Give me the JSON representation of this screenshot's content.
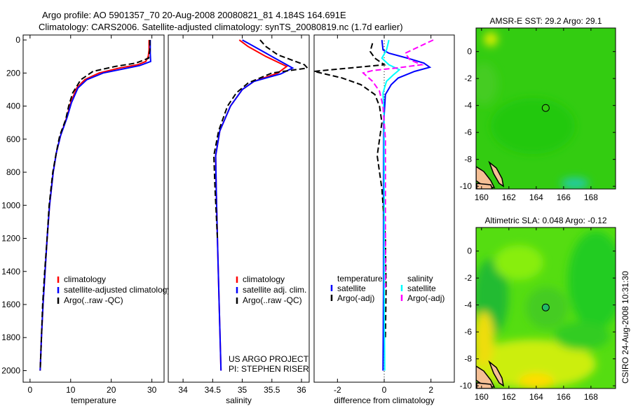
{
  "title_line1": "Argo profile: AO 5901357_70 20-Aug-2008 20080821_81 4.184S 164.691E",
  "title_line2": "Climatology: CARS2006. Satellite-adjusted climatology: synTS_20080819.nc (1.7d earlier)",
  "credit": "CSIRO 24-Aug-2008 10:31:30",
  "project_lines": [
    "US ARGO PROJECT",
    "PI: STEPHEN RISER"
  ],
  "colors": {
    "climatology": "#ff0000",
    "satellite": "#0000ff",
    "argo": "#000000",
    "sal_satellite": "#00ffff",
    "sal_argo": "#ff00ff"
  },
  "chart_data": [
    {
      "type": "line",
      "xlabel": "temperature",
      "ylabel": "",
      "xlim": [
        -1.7,
        33
      ],
      "ylim": [
        2070,
        -30
      ],
      "xticks": [
        0,
        10,
        20,
        30
      ],
      "yticks": [
        0,
        200,
        400,
        600,
        800,
        1000,
        1200,
        1400,
        1600,
        1800,
        2000
      ],
      "legend": [
        "climatology",
        "satellite-adjusted climatology",
        "Argo(..raw -QC)"
      ],
      "series": [
        {
          "name": "climatology",
          "color": "#ff0000",
          "dash": false,
          "points": [
            [
              29.3,
              0
            ],
            [
              29.3,
              60
            ],
            [
              29.1,
              100
            ],
            [
              28.5,
              130
            ],
            [
              26.5,
              150
            ],
            [
              22,
              170
            ],
            [
              17,
              200
            ],
            [
              13.5,
              240
            ],
            [
              11.5,
              290
            ],
            [
              10,
              380
            ],
            [
              9,
              470
            ],
            [
              7.5,
              580
            ],
            [
              6.5,
              680
            ],
            [
              5.7,
              800
            ],
            [
              4.8,
              1000
            ],
            [
              4.2,
              1200
            ],
            [
              3.7,
              1400
            ],
            [
              3.2,
              1600
            ],
            [
              2.8,
              1800
            ],
            [
              2.5,
              2000
            ]
          ]
        },
        {
          "name": "satellite-adjusted climatology",
          "color": "#0000ff",
          "dash": false,
          "points": [
            [
              29.6,
              0
            ],
            [
              29.6,
              80
            ],
            [
              29.7,
              130
            ],
            [
              27,
              155
            ],
            [
              23,
              175
            ],
            [
              18,
              200
            ],
            [
              14,
              240
            ],
            [
              11.8,
              290
            ],
            [
              10.2,
              380
            ],
            [
              9.1,
              470
            ],
            [
              7.5,
              580
            ],
            [
              6.5,
              680
            ],
            [
              5.7,
              800
            ],
            [
              4.8,
              1000
            ],
            [
              4.2,
              1200
            ],
            [
              3.7,
              1400
            ],
            [
              3.2,
              1600
            ],
            [
              2.8,
              1800
            ],
            [
              2.5,
              2000
            ]
          ]
        },
        {
          "name": "Argo(..raw -QC)",
          "color": "#000000",
          "dash": true,
          "points": [
            [
              29.5,
              0
            ],
            [
              29.5,
              60
            ],
            [
              29.2,
              110
            ],
            [
              26,
              140
            ],
            [
              21,
              160
            ],
            [
              15.5,
              190
            ],
            [
              12.5,
              240
            ],
            [
              10.5,
              320
            ],
            [
              9.5,
              400
            ],
            [
              8.8,
              480
            ],
            [
              7.3,
              580
            ],
            [
              6.4,
              690
            ],
            [
              5.6,
              800
            ],
            [
              4.7,
              1000
            ],
            [
              4.2,
              1200
            ],
            [
              3.6,
              1400
            ],
            [
              3.1,
              1600
            ],
            [
              2.8,
              1800
            ],
            [
              2.5,
              2000
            ]
          ]
        }
      ]
    },
    {
      "type": "line",
      "xlabel": "salinity",
      "xlim": [
        33.75,
        36.13
      ],
      "ylim": [
        2070,
        -30
      ],
      "xticks": [
        34,
        34.5,
        35,
        35.5,
        36
      ],
      "legend": [
        "climatology",
        "satellite adj. clim.",
        "Argo(..raw -QC)"
      ],
      "series": [
        {
          "name": "climatology",
          "color": "#ff0000",
          "dash": false,
          "points": [
            [
              34.95,
              0
            ],
            [
              35.1,
              40
            ],
            [
              35.4,
              100
            ],
            [
              35.75,
              160
            ],
            [
              35.6,
              200
            ],
            [
              35.2,
              250
            ],
            [
              35.0,
              300
            ],
            [
              34.8,
              400
            ],
            [
              34.62,
              550
            ],
            [
              34.55,
              700
            ],
            [
              34.56,
              900
            ],
            [
              34.58,
              1200
            ],
            [
              34.61,
              1600
            ],
            [
              34.64,
              2000
            ]
          ]
        },
        {
          "name": "satellite adj. clim.",
          "color": "#0000ff",
          "dash": false,
          "points": [
            [
              35.0,
              0
            ],
            [
              35.2,
              40
            ],
            [
              35.5,
              100
            ],
            [
              35.85,
              170
            ],
            [
              35.65,
              205
            ],
            [
              35.2,
              250
            ],
            [
              35.0,
              300
            ],
            [
              34.8,
              400
            ],
            [
              34.62,
              550
            ],
            [
              34.55,
              700
            ],
            [
              34.56,
              900
            ],
            [
              34.58,
              1200
            ],
            [
              34.61,
              1600
            ],
            [
              34.64,
              2000
            ]
          ]
        },
        {
          "name": "Argo(..raw -QC)",
          "color": "#000000",
          "dash": true,
          "points": [
            [
              35.3,
              0
            ],
            [
              35.4,
              40
            ],
            [
              35.6,
              90
            ],
            [
              36.05,
              150
            ],
            [
              36.1,
              170
            ],
            [
              35.5,
              200
            ],
            [
              35.1,
              260
            ],
            [
              34.9,
              320
            ],
            [
              34.75,
              400
            ],
            [
              34.6,
              550
            ],
            [
              34.52,
              700
            ],
            [
              34.54,
              900
            ],
            [
              34.58,
              1200
            ]
          ]
        }
      ]
    },
    {
      "type": "line",
      "xlabel": "difference from climatology",
      "xlim": [
        -3,
        3
      ],
      "ylim": [
        2070,
        -30
      ],
      "xticks": [
        -2,
        0,
        2
      ],
      "legend_headers": [
        "temperature",
        "salinity"
      ],
      "legend": [
        "satellite",
        "Argo(-adj)",
        "satellite",
        "Argo(-adj)"
      ],
      "series": [
        {
          "name": "temperature satellite",
          "color": "#0000ff",
          "dash": false,
          "points": [
            [
              -0.1,
              0
            ],
            [
              -0.05,
              60
            ],
            [
              0.2,
              80
            ],
            [
              1.0,
              110
            ],
            [
              1.7,
              140
            ],
            [
              1.95,
              165
            ],
            [
              1.3,
              190
            ],
            [
              0.6,
              230
            ],
            [
              0.3,
              270
            ],
            [
              0.05,
              330
            ],
            [
              -0.02,
              500
            ],
            [
              -0.03,
              900
            ],
            [
              -0.03,
              1500
            ],
            [
              -0.05,
              2000
            ]
          ]
        },
        {
          "name": "temperature Argo(-adj)",
          "color": "#000000",
          "dash": true,
          "points": [
            [
              -0.5,
              20
            ],
            [
              -0.6,
              70
            ],
            [
              -0.4,
              110
            ],
            [
              0,
              150
            ],
            [
              -1.5,
              170
            ],
            [
              -3.0,
              190
            ],
            [
              -1.8,
              230
            ],
            [
              -1.0,
              270
            ],
            [
              -0.4,
              330
            ],
            [
              -0.2,
              400
            ],
            [
              -0.1,
              500
            ],
            [
              -0.3,
              700
            ],
            [
              -0.1,
              900
            ],
            [
              0.05,
              1200
            ],
            [
              0.08,
              1500
            ],
            [
              0.05,
              1800
            ]
          ]
        },
        {
          "name": "salinity satellite",
          "color": "#00ffff",
          "dash": false,
          "points": [
            [
              0.2,
              0
            ],
            [
              0.1,
              60
            ],
            [
              -0.1,
              110
            ],
            [
              0.2,
              150
            ],
            [
              0.65,
              180
            ],
            [
              0.4,
              210
            ],
            [
              0.1,
              250
            ],
            [
              -0.05,
              320
            ],
            [
              0.0,
              500
            ],
            [
              0.0,
              1000
            ],
            [
              0.0,
              1500
            ],
            [
              0.02,
              2000
            ]
          ]
        },
        {
          "name": "salinity Argo(-adj)",
          "color": "#ff00ff",
          "dash": true,
          "points": [
            [
              2.1,
              0
            ],
            [
              1.5,
              40
            ],
            [
              0.9,
              80
            ],
            [
              1.1,
              120
            ],
            [
              1.6,
              150
            ],
            [
              0.5,
              170
            ],
            [
              -0.5,
              185
            ],
            [
              -0.9,
              200
            ],
            [
              -0.5,
              250
            ],
            [
              -0.2,
              310
            ],
            [
              -0.05,
              400
            ],
            [
              0.05,
              600
            ],
            [
              0.05,
              1000
            ],
            [
              0.05,
              1500
            ]
          ]
        }
      ]
    },
    {
      "type": "heatmap",
      "title": "AMSR-E SST: 29.2 Argo: 29.1",
      "xlim": [
        159.6,
        169.8
      ],
      "ylim": [
        -10.2,
        1.75
      ],
      "xticks": [
        160,
        162,
        164,
        166,
        168
      ],
      "yticks": [
        0,
        -2,
        -4,
        -6,
        -8,
        -10
      ],
      "argo_position": [
        164.691,
        -4.184
      ]
    },
    {
      "type": "heatmap",
      "title": "Altimetric SLA: 0.048 Argo: -0.12",
      "xlim": [
        159.6,
        169.8
      ],
      "ylim": [
        -10.2,
        1.75
      ],
      "xticks": [
        160,
        162,
        164,
        166,
        168
      ],
      "yticks": [
        0,
        -2,
        -4,
        -6,
        -8,
        -10
      ],
      "argo_position": [
        164.691,
        -4.184
      ]
    }
  ]
}
